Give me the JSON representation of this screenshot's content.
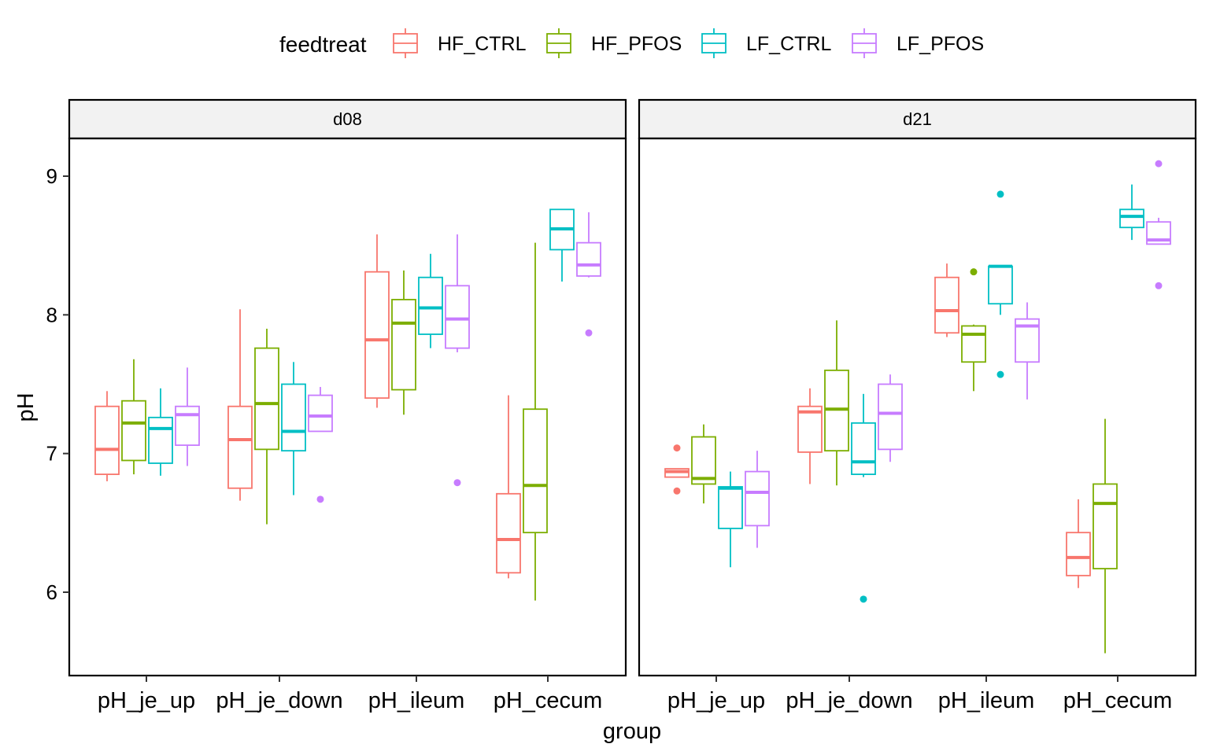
{
  "chart_data": {
    "type": "boxplot",
    "xlabel": "group",
    "ylabel": "pH",
    "ylim": [
      5.4,
      9.5
    ],
    "y_ticks": [
      6,
      7,
      8,
      9
    ],
    "categories": [
      "pH_je_up",
      "pH_je_down",
      "pH_ileum",
      "pH_cecum"
    ],
    "legend": {
      "title": "feedtreat",
      "position": "top",
      "items": [
        {
          "name": "HF_CTRL",
          "color": "#F8766D"
        },
        {
          "name": "HF_PFOS",
          "color": "#7CAE00"
        },
        {
          "name": "LF_CTRL",
          "color": "#00BFC4"
        },
        {
          "name": "LF_PFOS",
          "color": "#C77CFF"
        }
      ]
    },
    "grid": false,
    "panels": [
      {
        "label": "d08",
        "groups": [
          {
            "category": "pH_je_up",
            "boxes": [
              {
                "series": "HF_CTRL",
                "min": 6.8,
                "q1": 6.85,
                "median": 7.03,
                "q3": 7.34,
                "max": 7.45,
                "outliers": []
              },
              {
                "series": "HF_PFOS",
                "min": 6.85,
                "q1": 6.95,
                "median": 7.22,
                "q3": 7.38,
                "max": 7.68,
                "outliers": []
              },
              {
                "series": "LF_CTRL",
                "min": 6.84,
                "q1": 6.93,
                "median": 7.18,
                "q3": 7.26,
                "max": 7.47,
                "outliers": []
              },
              {
                "series": "LF_PFOS",
                "min": 6.91,
                "q1": 7.06,
                "median": 7.28,
                "q3": 7.34,
                "max": 7.62,
                "outliers": []
              }
            ]
          },
          {
            "category": "pH_je_down",
            "boxes": [
              {
                "series": "HF_CTRL",
                "min": 6.66,
                "q1": 6.75,
                "median": 7.1,
                "q3": 7.34,
                "max": 8.04,
                "outliers": []
              },
              {
                "series": "HF_PFOS",
                "min": 6.49,
                "q1": 7.03,
                "median": 7.36,
                "q3": 7.76,
                "max": 7.9,
                "outliers": []
              },
              {
                "series": "LF_CTRL",
                "min": 6.7,
                "q1": 7.02,
                "median": 7.16,
                "q3": 7.5,
                "max": 7.66,
                "outliers": []
              },
              {
                "series": "LF_PFOS",
                "min": 7.16,
                "q1": 7.16,
                "median": 7.27,
                "q3": 7.42,
                "max": 7.48,
                "outliers": [
                  6.67
                ]
              }
            ]
          },
          {
            "category": "pH_ileum",
            "boxes": [
              {
                "series": "HF_CTRL",
                "min": 7.33,
                "q1": 7.4,
                "median": 7.82,
                "q3": 8.31,
                "max": 8.58,
                "outliers": []
              },
              {
                "series": "HF_PFOS",
                "min": 7.28,
                "q1": 7.46,
                "median": 7.94,
                "q3": 8.11,
                "max": 8.32,
                "outliers": []
              },
              {
                "series": "LF_CTRL",
                "min": 7.76,
                "q1": 7.86,
                "median": 8.05,
                "q3": 8.27,
                "max": 8.44,
                "outliers": []
              },
              {
                "series": "LF_PFOS",
                "min": 7.73,
                "q1": 7.76,
                "median": 7.97,
                "q3": 8.21,
                "max": 8.58,
                "outliers": [
                  6.79
                ]
              }
            ]
          },
          {
            "category": "pH_cecum",
            "boxes": [
              {
                "series": "HF_CTRL",
                "min": 6.1,
                "q1": 6.14,
                "median": 6.38,
                "q3": 6.71,
                "max": 7.42,
                "outliers": []
              },
              {
                "series": "HF_PFOS",
                "min": 5.94,
                "q1": 6.43,
                "median": 6.77,
                "q3": 7.32,
                "max": 8.52,
                "outliers": []
              },
              {
                "series": "LF_CTRL",
                "min": 8.24,
                "q1": 8.47,
                "median": 8.62,
                "q3": 8.76,
                "max": 8.76,
                "outliers": []
              },
              {
                "series": "LF_PFOS",
                "min": 8.27,
                "q1": 8.28,
                "median": 8.36,
                "q3": 8.52,
                "max": 8.74,
                "outliers": [
                  7.87
                ]
              }
            ]
          }
        ]
      },
      {
        "label": "d21",
        "groups": [
          {
            "category": "pH_je_up",
            "boxes": [
              {
                "series": "HF_CTRL",
                "min": 6.83,
                "q1": 6.83,
                "median": 6.87,
                "q3": 6.89,
                "max": 6.89,
                "outliers": [
                  7.04,
                  6.73
                ]
              },
              {
                "series": "HF_PFOS",
                "min": 6.64,
                "q1": 6.78,
                "median": 6.82,
                "q3": 7.12,
                "max": 7.21,
                "outliers": []
              },
              {
                "series": "LF_CTRL",
                "min": 6.18,
                "q1": 6.46,
                "median": 6.75,
                "q3": 6.76,
                "max": 6.87,
                "outliers": []
              },
              {
                "series": "LF_PFOS",
                "min": 6.32,
                "q1": 6.48,
                "median": 6.72,
                "q3": 6.87,
                "max": 7.02,
                "outliers": []
              }
            ]
          },
          {
            "category": "pH_je_down",
            "boxes": [
              {
                "series": "HF_CTRL",
                "min": 6.78,
                "q1": 7.01,
                "median": 7.3,
                "q3": 7.34,
                "max": 7.47,
                "outliers": []
              },
              {
                "series": "HF_PFOS",
                "min": 6.77,
                "q1": 7.02,
                "median": 7.32,
                "q3": 7.6,
                "max": 7.96,
                "outliers": []
              },
              {
                "series": "LF_CTRL",
                "min": 6.83,
                "q1": 6.85,
                "median": 6.94,
                "q3": 7.22,
                "max": 7.43,
                "outliers": [
                  5.95
                ]
              },
              {
                "series": "LF_PFOS",
                "min": 6.94,
                "q1": 7.03,
                "median": 7.29,
                "q3": 7.5,
                "max": 7.57,
                "outliers": []
              }
            ]
          },
          {
            "category": "pH_ileum",
            "boxes": [
              {
                "series": "HF_CTRL",
                "min": 7.84,
                "q1": 7.87,
                "median": 8.03,
                "q3": 8.27,
                "max": 8.37,
                "outliers": []
              },
              {
                "series": "HF_PFOS",
                "min": 7.45,
                "q1": 7.66,
                "median": 7.86,
                "q3": 7.92,
                "max": 7.93,
                "outliers": [
                  8.31
                ]
              },
              {
                "series": "LF_CTRL",
                "min": 8.0,
                "q1": 8.08,
                "median": 8.35,
                "q3": 8.35,
                "max": 8.35,
                "outliers": [
                  8.87,
                  7.57
                ]
              },
              {
                "series": "LF_PFOS",
                "min": 7.39,
                "q1": 7.66,
                "median": 7.92,
                "q3": 7.97,
                "max": 8.09,
                "outliers": []
              }
            ]
          },
          {
            "category": "pH_cecum",
            "boxes": [
              {
                "series": "HF_CTRL",
                "min": 6.03,
                "q1": 6.12,
                "median": 6.25,
                "q3": 6.43,
                "max": 6.67,
                "outliers": []
              },
              {
                "series": "HF_PFOS",
                "min": 5.56,
                "q1": 6.17,
                "median": 6.64,
                "q3": 6.78,
                "max": 7.25,
                "outliers": []
              },
              {
                "series": "LF_CTRL",
                "min": 8.54,
                "q1": 8.63,
                "median": 8.71,
                "q3": 8.76,
                "max": 8.94,
                "outliers": []
              },
              {
                "series": "LF_PFOS",
                "min": 8.51,
                "q1": 8.51,
                "median": 8.54,
                "q3": 8.67,
                "max": 8.7,
                "outliers": [
                  9.09,
                  8.21
                ]
              }
            ]
          }
        ]
      }
    ]
  }
}
